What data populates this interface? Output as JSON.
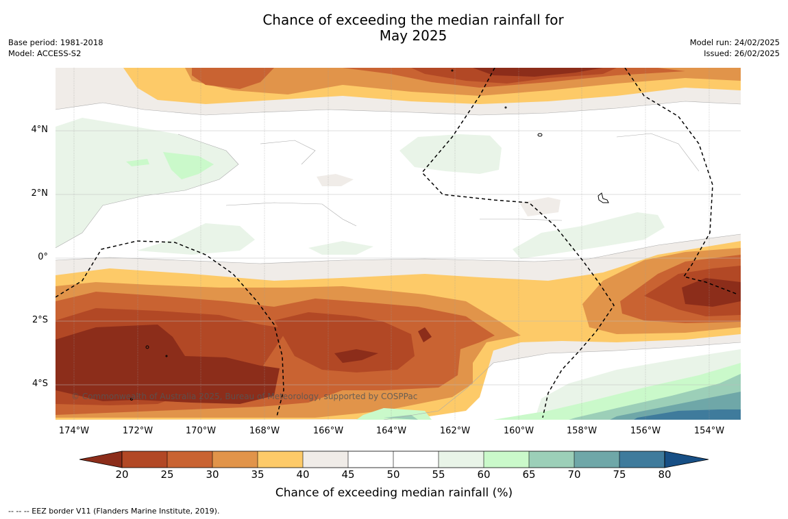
{
  "header": {
    "title_line1": "Chance of exceeding the median rainfall for",
    "title_line2": "May 2025",
    "base_period": "Base period: 1981-2018",
    "model": "Model: ACCESS-S2",
    "model_run": "Model run: 24/02/2025",
    "issued": "Issued: 26/02/2025"
  },
  "map": {
    "copyright": "© Commonwealth of Australia 2025, Bureau of Meteorology, supported by COSPPac",
    "x_ticks": [
      "174°W",
      "172°W",
      "170°W",
      "168°W",
      "166°W",
      "164°W",
      "162°W",
      "160°W",
      "158°W",
      "156°W",
      "154°W"
    ],
    "y_ticks": [
      "4°N",
      "2°N",
      "0°",
      "2°S",
      "4°S"
    ],
    "lon_range": [
      -174.6,
      -153.0
    ],
    "lat_range": [
      -5.1,
      5.9
    ]
  },
  "colorbar": {
    "label": "Chance of exceeding median rainfall (%)",
    "ticks": [
      "20",
      "25",
      "30",
      "35",
      "40",
      "45",
      "50",
      "55",
      "60",
      "65",
      "70",
      "75",
      "80"
    ],
    "colors": [
      "#8c2d1a",
      "#b24825",
      "#c96332",
      "#e1944a",
      "#fdca68",
      "#f0ece8",
      "#ffffff",
      "#ffffff",
      "#e9f4e8",
      "#caf9ca",
      "#9ccfb8",
      "#6fa7a8",
      "#3f7b9c",
      "#174f85"
    ]
  },
  "footnote": "--  --  -- EEZ border V11 (Flanders Marine Institute, 2019)."
}
